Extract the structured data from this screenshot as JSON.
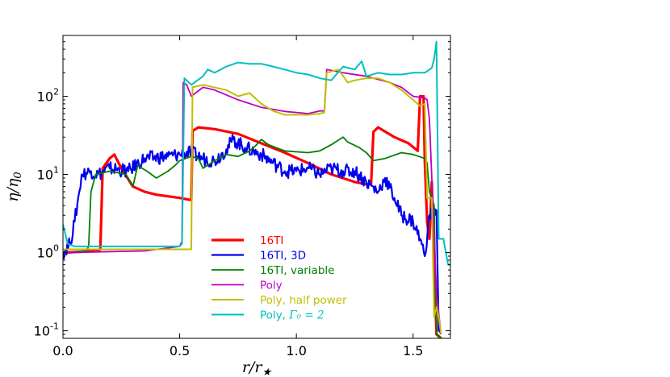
{
  "chart_data": {
    "type": "line",
    "xlabel": "r/r★",
    "ylabel": "η/η₀",
    "xlim": [
      0.0,
      1.66
    ],
    "ylim": [
      0.08,
      600
    ],
    "yscale": "log",
    "grid": false,
    "legend_position": "bottom-center",
    "xticks": [
      {
        "value": 0.0,
        "label": "0.0"
      },
      {
        "value": 0.5,
        "label": "0.5"
      },
      {
        "value": 1.0,
        "label": "1.0"
      },
      {
        "value": 1.5,
        "label": "1.5"
      }
    ],
    "yticks": [
      {
        "value": 0.1,
        "base": "10",
        "exp": "-1"
      },
      {
        "value": 1,
        "base": "10",
        "exp": "0"
      },
      {
        "value": 10,
        "base": "10",
        "exp": "1"
      },
      {
        "value": 100,
        "base": "10",
        "exp": "2"
      }
    ],
    "series": [
      {
        "name": "16TI",
        "legend_prefix": "16TI",
        "legend_math": "",
        "color": "#ff0000",
        "width": 3.2,
        "noise": 0,
        "points": [
          [
            0.0,
            1.0
          ],
          [
            0.15,
            1.05
          ],
          [
            0.16,
            1.1
          ],
          [
            0.17,
            12
          ],
          [
            0.2,
            16
          ],
          [
            0.22,
            18
          ],
          [
            0.25,
            12
          ],
          [
            0.3,
            7
          ],
          [
            0.35,
            6
          ],
          [
            0.4,
            5.5
          ],
          [
            0.5,
            5.0
          ],
          [
            0.55,
            4.7
          ],
          [
            0.555,
            36
          ],
          [
            0.58,
            40
          ],
          [
            0.65,
            38
          ],
          [
            0.75,
            33
          ],
          [
            0.85,
            25
          ],
          [
            0.95,
            19
          ],
          [
            1.05,
            14
          ],
          [
            1.15,
            10
          ],
          [
            1.25,
            8
          ],
          [
            1.3,
            7.5
          ],
          [
            1.32,
            7.5
          ],
          [
            1.33,
            35
          ],
          [
            1.35,
            40
          ],
          [
            1.42,
            30
          ],
          [
            1.48,
            25
          ],
          [
            1.52,
            20
          ],
          [
            1.53,
            100
          ],
          [
            1.545,
            100
          ],
          [
            1.55,
            15
          ],
          [
            1.56,
            2.5
          ],
          [
            1.57,
            1.5
          ],
          [
            1.58,
            8
          ],
          [
            1.6,
            0.09
          ],
          [
            1.62,
            0.08
          ]
        ]
      },
      {
        "name": "16TI, 3D",
        "legend_prefix": "16TI, 3D",
        "legend_math": "",
        "color": "#0000ee",
        "width": 2.2,
        "noise": 0.09,
        "points": [
          [
            0.0,
            1.0
          ],
          [
            0.03,
            1.3
          ],
          [
            0.05,
            2.5
          ],
          [
            0.07,
            6
          ],
          [
            0.08,
            10
          ],
          [
            0.12,
            11
          ],
          [
            0.15,
            10
          ],
          [
            0.2,
            12
          ],
          [
            0.28,
            11
          ],
          [
            0.35,
            16
          ],
          [
            0.45,
            17
          ],
          [
            0.5,
            18
          ],
          [
            0.55,
            19
          ],
          [
            0.6,
            16
          ],
          [
            0.65,
            15
          ],
          [
            0.7,
            21
          ],
          [
            0.73,
            28
          ],
          [
            0.78,
            22
          ],
          [
            0.85,
            18
          ],
          [
            0.9,
            14
          ],
          [
            0.95,
            11
          ],
          [
            1.0,
            11
          ],
          [
            1.05,
            12
          ],
          [
            1.1,
            10
          ],
          [
            1.15,
            12
          ],
          [
            1.2,
            11
          ],
          [
            1.25,
            11
          ],
          [
            1.3,
            8
          ],
          [
            1.35,
            6
          ],
          [
            1.38,
            9
          ],
          [
            1.42,
            5
          ],
          [
            1.45,
            3
          ],
          [
            1.5,
            2.5
          ],
          [
            1.53,
            1.5
          ],
          [
            1.55,
            0.9
          ],
          [
            1.57,
            3
          ],
          [
            1.6,
            3.5
          ],
          [
            1.61,
            0.1
          ],
          [
            1.62,
            0.09
          ]
        ]
      },
      {
        "name": "16TI, variable",
        "legend_prefix": "16TI, variable",
        "legend_math": "",
        "color": "#008000",
        "width": 1.8,
        "noise": 0,
        "points": [
          [
            0.0,
            1.0
          ],
          [
            0.1,
            1.05
          ],
          [
            0.11,
            1.2
          ],
          [
            0.12,
            6
          ],
          [
            0.14,
            10
          ],
          [
            0.2,
            11
          ],
          [
            0.27,
            10
          ],
          [
            0.3,
            7
          ],
          [
            0.32,
            13
          ],
          [
            0.36,
            11
          ],
          [
            0.4,
            9
          ],
          [
            0.45,
            11
          ],
          [
            0.48,
            13
          ],
          [
            0.5,
            15
          ],
          [
            0.55,
            17
          ],
          [
            0.58,
            16
          ],
          [
            0.6,
            12
          ],
          [
            0.65,
            15
          ],
          [
            0.7,
            18
          ],
          [
            0.75,
            17
          ],
          [
            0.8,
            20
          ],
          [
            0.83,
            24
          ],
          [
            0.85,
            28
          ],
          [
            0.88,
            24
          ],
          [
            0.95,
            20
          ],
          [
            1.05,
            19
          ],
          [
            1.1,
            20
          ],
          [
            1.15,
            24
          ],
          [
            1.2,
            30
          ],
          [
            1.22,
            26
          ],
          [
            1.27,
            22
          ],
          [
            1.3,
            19
          ],
          [
            1.33,
            15
          ],
          [
            1.38,
            16
          ],
          [
            1.45,
            19
          ],
          [
            1.5,
            18
          ],
          [
            1.55,
            16
          ],
          [
            1.56,
            14
          ],
          [
            1.57,
            6
          ],
          [
            1.59,
            4
          ],
          [
            1.6,
            0.09
          ],
          [
            1.62,
            0.08
          ]
        ]
      },
      {
        "name": "Poly",
        "legend_prefix": "Poly",
        "legend_math": "",
        "color": "#bf00bf",
        "width": 1.8,
        "noise": 0,
        "points": [
          [
            0.0,
            1.0
          ],
          [
            0.35,
            1.05
          ],
          [
            0.5,
            1.2
          ],
          [
            0.51,
            1.4
          ],
          [
            0.515,
            150
          ],
          [
            0.53,
            140
          ],
          [
            0.55,
            100
          ],
          [
            0.6,
            130
          ],
          [
            0.65,
            120
          ],
          [
            0.75,
            90
          ],
          [
            0.85,
            72
          ],
          [
            0.95,
            64
          ],
          [
            1.05,
            60
          ],
          [
            1.1,
            65
          ],
          [
            1.12,
            65
          ],
          [
            1.13,
            220
          ],
          [
            1.2,
            200
          ],
          [
            1.3,
            180
          ],
          [
            1.4,
            150
          ],
          [
            1.45,
            130
          ],
          [
            1.5,
            100
          ],
          [
            1.55,
            95
          ],
          [
            1.56,
            90
          ],
          [
            1.57,
            50
          ],
          [
            1.6,
            0.3
          ],
          [
            1.62,
            0.09
          ]
        ]
      },
      {
        "name": "Poly, half power",
        "legend_prefix": "Poly, half power",
        "legend_math": "",
        "color": "#bfbf00",
        "width": 2.0,
        "noise": 0,
        "points": [
          [
            0.0,
            1.1
          ],
          [
            0.5,
            1.1
          ],
          [
            0.55,
            1.1
          ],
          [
            0.555,
            130
          ],
          [
            0.6,
            140
          ],
          [
            0.7,
            120
          ],
          [
            0.75,
            100
          ],
          [
            0.8,
            110
          ],
          [
            0.85,
            80
          ],
          [
            0.9,
            65
          ],
          [
            0.95,
            58
          ],
          [
            1.05,
            58
          ],
          [
            1.1,
            60
          ],
          [
            1.12,
            62
          ],
          [
            1.13,
            200
          ],
          [
            1.18,
            220
          ],
          [
            1.22,
            150
          ],
          [
            1.25,
            160
          ],
          [
            1.3,
            170
          ],
          [
            1.35,
            170
          ],
          [
            1.4,
            150
          ],
          [
            1.45,
            120
          ],
          [
            1.5,
            90
          ],
          [
            1.53,
            75
          ],
          [
            1.55,
            80
          ],
          [
            1.56,
            5
          ],
          [
            1.58,
            5
          ],
          [
            1.59,
            0.15
          ],
          [
            1.6,
            0.2
          ],
          [
            1.61,
            0.15
          ],
          [
            1.62,
            0.09
          ]
        ]
      },
      {
        "name": "Poly, Γ₀ = 2",
        "legend_prefix": "Poly, ",
        "legend_math": "Γ₀ = 2",
        "color": "#00bfbf",
        "width": 2.0,
        "noise": 0,
        "points": [
          [
            0.0,
            2.3
          ],
          [
            0.02,
            1.3
          ],
          [
            0.05,
            1.2
          ],
          [
            0.1,
            1.2
          ],
          [
            0.3,
            1.2
          ],
          [
            0.5,
            1.2
          ],
          [
            0.51,
            1.3
          ],
          [
            0.52,
            170
          ],
          [
            0.55,
            140
          ],
          [
            0.6,
            180
          ],
          [
            0.62,
            220
          ],
          [
            0.65,
            200
          ],
          [
            0.7,
            240
          ],
          [
            0.75,
            270
          ],
          [
            0.8,
            260
          ],
          [
            0.85,
            260
          ],
          [
            0.9,
            240
          ],
          [
            0.95,
            220
          ],
          [
            1.0,
            200
          ],
          [
            1.05,
            190
          ],
          [
            1.1,
            170
          ],
          [
            1.15,
            160
          ],
          [
            1.2,
            240
          ],
          [
            1.25,
            220
          ],
          [
            1.28,
            280
          ],
          [
            1.3,
            180
          ],
          [
            1.35,
            200
          ],
          [
            1.4,
            190
          ],
          [
            1.45,
            190
          ],
          [
            1.5,
            200
          ],
          [
            1.55,
            200
          ],
          [
            1.58,
            230
          ],
          [
            1.59,
            300
          ],
          [
            1.6,
            500
          ],
          [
            1.61,
            1.5
          ],
          [
            1.63,
            1.5
          ],
          [
            1.65,
            0.7
          ],
          [
            1.66,
            0.7
          ]
        ]
      }
    ]
  }
}
